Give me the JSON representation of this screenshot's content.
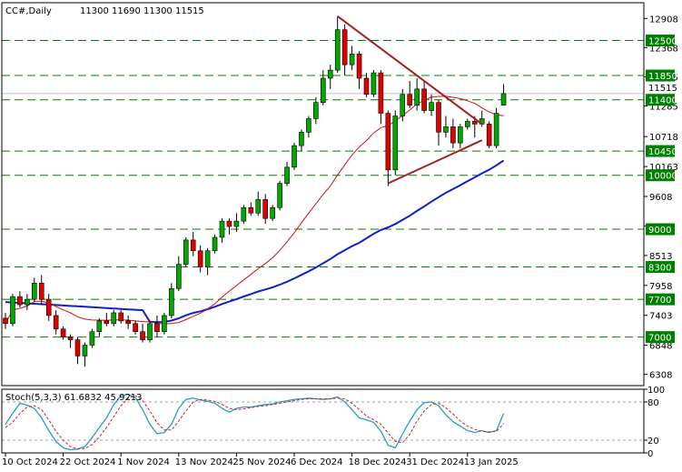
{
  "header": {
    "symbol_timeframe": "CC#,Daily",
    "ohlc": "11300 11690 11300 11515"
  },
  "colors": {
    "background": "#ffffff",
    "bull": "#00a800",
    "bear": "#e00000",
    "level_line": "#008000",
    "label_bg": "#008000",
    "ma_fast": "#d01010",
    "ma_slow": "#1020c8",
    "trendline": "#a02020",
    "stoch_main": "#20a0c8",
    "stoch_signal": "#d02020"
  },
  "chart_data": [
    {
      "type": "candlestick",
      "title": "CC#,Daily",
      "ylim": [
        6100,
        13200
      ],
      "price_ticks": [
        "12908",
        "12368",
        "11825",
        "11285",
        "10718",
        "10163",
        "9608",
        "9063",
        "8513",
        "7958",
        "7403",
        "6848",
        "6308"
      ],
      "current_price": "11515",
      "levels": [
        12500,
        11850,
        11400,
        10450,
        10000,
        9000,
        8300,
        7700,
        7000
      ],
      "x_labels": [
        "10 Oct 2024",
        "22 Oct 2024",
        "1 Nov 2024",
        "13 Nov 2024",
        "25 Nov 2024",
        "6 Dec 2024",
        "18 Dec 2024",
        "31 Dec 2024",
        "13 Jan 2025"
      ],
      "x_label_index": [
        0,
        8,
        16,
        24,
        32,
        40,
        48,
        56,
        64
      ],
      "candles": [
        [
          7350,
          7450,
          7150,
          7250
        ],
        [
          7250,
          7800,
          7200,
          7750
        ],
        [
          7750,
          7850,
          7550,
          7600
        ],
        [
          7600,
          7800,
          7500,
          7700
        ],
        [
          7700,
          8100,
          7650,
          8000
        ],
        [
          8000,
          8150,
          7600,
          7700
        ],
        [
          7700,
          7800,
          7300,
          7400
        ],
        [
          7400,
          7500,
          7050,
          7150
        ],
        [
          7150,
          7200,
          6950,
          7000
        ],
        [
          7000,
          7050,
          6800,
          6950
        ],
        [
          6950,
          7000,
          6500,
          6650
        ],
        [
          6650,
          6900,
          6450,
          6850
        ],
        [
          6850,
          7150,
          6800,
          7100
        ],
        [
          7100,
          7350,
          7000,
          7300
        ],
        [
          7300,
          7450,
          7200,
          7250
        ],
        [
          7250,
          7500,
          7200,
          7450
        ],
        [
          7450,
          7500,
          7250,
          7300
        ],
        [
          7300,
          7400,
          7150,
          7250
        ],
        [
          7250,
          7300,
          7050,
          7100
        ],
        [
          7100,
          7250,
          6900,
          6950
        ],
        [
          6950,
          7300,
          6900,
          7250
        ],
        [
          7250,
          7400,
          7000,
          7100
        ],
        [
          7100,
          7450,
          7050,
          7400
        ],
        [
          7400,
          8000,
          7350,
          7900
        ],
        [
          7900,
          8500,
          7850,
          8350
        ],
        [
          8350,
          8850,
          8300,
          8800
        ],
        [
          8800,
          8950,
          8500,
          8600
        ],
        [
          8600,
          8700,
          8200,
          8300
        ],
        [
          8300,
          8650,
          8150,
          8600
        ],
        [
          8600,
          8900,
          8550,
          8850
        ],
        [
          8850,
          9200,
          8750,
          9150
        ],
        [
          9150,
          9200,
          8900,
          9050
        ],
        [
          9050,
          9300,
          8950,
          9150
        ],
        [
          9150,
          9450,
          9100,
          9400
        ],
        [
          9400,
          9500,
          9250,
          9300
        ],
        [
          9300,
          9700,
          9250,
          9550
        ],
        [
          9550,
          9650,
          9100,
          9200
        ],
        [
          9200,
          9450,
          9150,
          9400
        ],
        [
          9400,
          9900,
          9350,
          9850
        ],
        [
          9850,
          10250,
          9800,
          10150
        ],
        [
          10150,
          10600,
          10100,
          10550
        ],
        [
          10550,
          10850,
          10450,
          10800
        ],
        [
          10800,
          11100,
          10700,
          11050
        ],
        [
          11050,
          11450,
          10950,
          11350
        ],
        [
          11350,
          11950,
          11300,
          11800
        ],
        [
          11800,
          12050,
          11600,
          11950
        ],
        [
          11950,
          12950,
          11900,
          12700
        ],
        [
          12700,
          12800,
          11850,
          12050
        ],
        [
          12050,
          12400,
          11950,
          12250
        ],
        [
          12250,
          12300,
          11600,
          11800
        ],
        [
          11800,
          11900,
          11450,
          11500
        ],
        [
          11500,
          11950,
          11450,
          11900
        ],
        [
          11900,
          11950,
          10950,
          11150
        ],
        [
          11150,
          11200,
          9800,
          10100
        ],
        [
          10100,
          11200,
          10000,
          11100
        ],
        [
          11100,
          11600,
          11000,
          11500
        ],
        [
          11500,
          11750,
          11250,
          11300
        ],
        [
          11300,
          11800,
          11200,
          11600
        ],
        [
          11600,
          11750,
          11150,
          11200
        ],
        [
          11200,
          11500,
          11100,
          11350
        ],
        [
          11350,
          11400,
          10550,
          10800
        ],
        [
          10800,
          11100,
          10700,
          10900
        ],
        [
          10900,
          11050,
          10500,
          10600
        ],
        [
          10600,
          10950,
          10500,
          10900
        ],
        [
          10900,
          11050,
          10850,
          11000
        ],
        [
          11000,
          11100,
          10700,
          10950
        ],
        [
          10950,
          11200,
          10900,
          11050
        ],
        [
          10950,
          11000,
          10500,
          10550
        ],
        [
          10550,
          11250,
          10500,
          11150
        ],
        [
          11300,
          11690,
          11300,
          11515
        ]
      ],
      "trendlines": [
        {
          "from": [
            46,
            12950
          ],
          "to": [
            66,
            10950
          ]
        },
        {
          "from": [
            53,
            9850
          ],
          "to": [
            66,
            10650
          ]
        }
      ]
    },
    {
      "type": "line",
      "title": "Stoch(5,3,3) 61.6832 45.9213",
      "ylim": [
        0,
        100
      ],
      "ticks": [
        "100",
        "80",
        "20",
        "0"
      ],
      "levels": [
        80,
        20
      ],
      "series": [
        {
          "name": "Stoch(5,3,3)",
          "values": [
            45,
            62,
            78,
            75,
            70,
            55,
            35,
            18,
            8,
            5,
            6,
            10,
            24,
            40,
            55,
            76,
            90,
            92,
            87,
            68,
            45,
            30,
            32,
            45,
            70,
            84,
            86,
            83,
            81,
            78,
            70,
            64,
            70,
            72,
            72,
            74,
            76,
            77,
            80,
            82,
            84,
            85,
            86,
            85,
            84,
            85,
            88,
            80,
            68,
            55,
            52,
            48,
            34,
            12,
            8,
            30,
            50,
            68,
            79,
            80,
            74,
            60,
            49,
            42,
            35,
            32,
            35,
            32,
            35,
            62
          ]
        },
        {
          "name": "Signal",
          "values": [
            40,
            48,
            62,
            72,
            74,
            68,
            52,
            34,
            20,
            10,
            6,
            7,
            13,
            25,
            40,
            57,
            74,
            86,
            90,
            82,
            66,
            47,
            36,
            36,
            50,
            66,
            80,
            84,
            83,
            81,
            76,
            70,
            68,
            69,
            71,
            73,
            74,
            76,
            78,
            80,
            82,
            84,
            85,
            85,
            85,
            85,
            86,
            85,
            78,
            68,
            58,
            52,
            45,
            31,
            18,
            16,
            29,
            50,
            66,
            76,
            78,
            71,
            61,
            50,
            42,
            37,
            34,
            33,
            34,
            46
          ]
        }
      ]
    }
  ]
}
